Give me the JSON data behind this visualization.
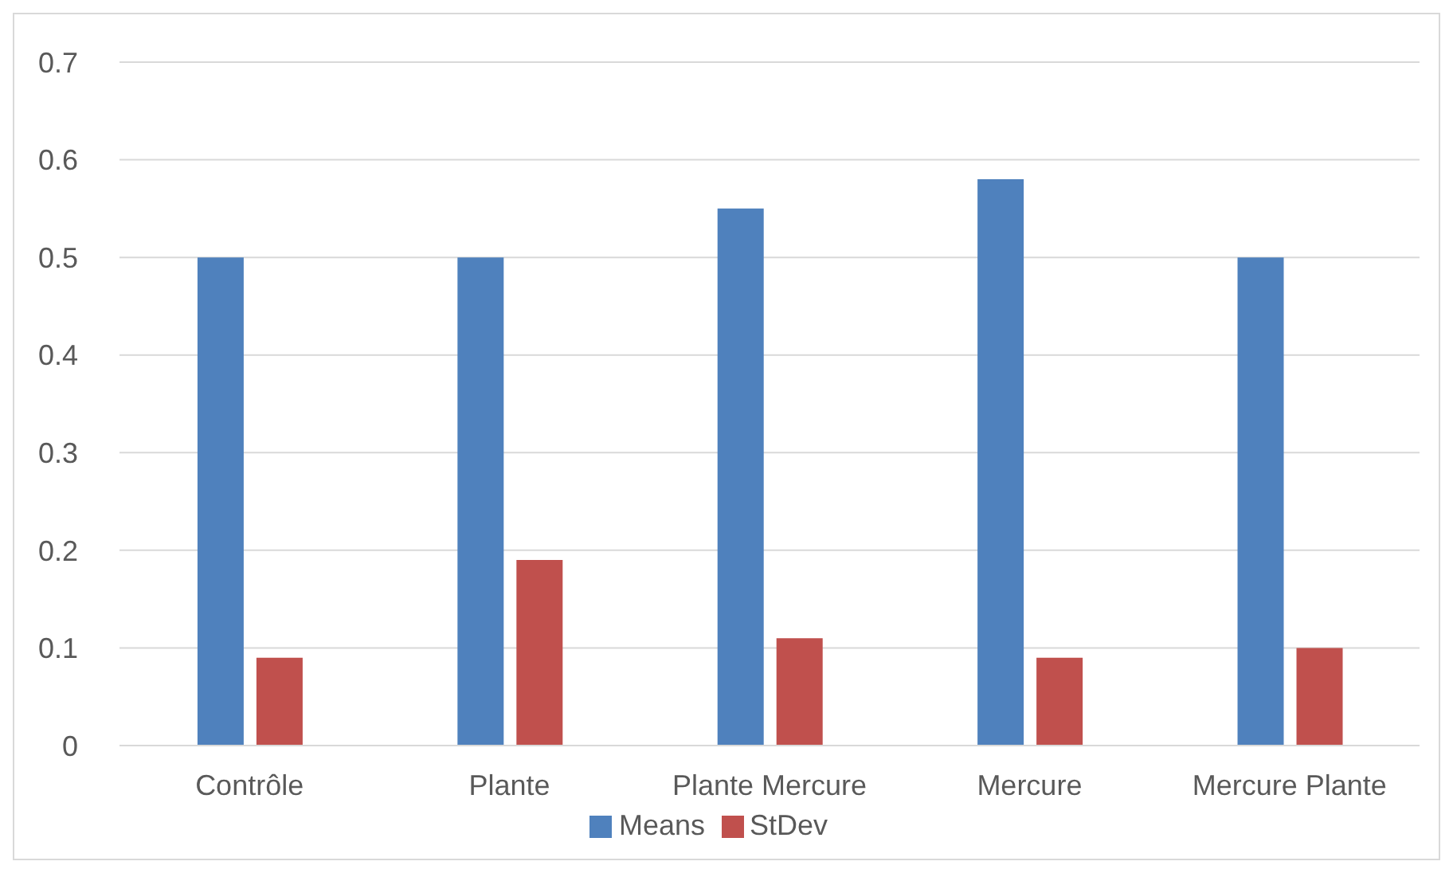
{
  "chart_data": {
    "type": "bar",
    "categories": [
      "Contrôle",
      "Plante",
      "Plante Mercure",
      "Mercure",
      "Mercure Plante"
    ],
    "series": [
      {
        "name": "Means",
        "color": "#4f81bd",
        "values": [
          0.5,
          0.5,
          0.55,
          0.58,
          0.5
        ]
      },
      {
        "name": "StDev",
        "color": "#c0504d",
        "values": [
          0.09,
          0.19,
          0.11,
          0.09,
          0.1
        ]
      }
    ],
    "ylim": [
      0,
      0.7
    ],
    "yticks": [
      0,
      0.1,
      0.2,
      0.3,
      0.4,
      0.5,
      0.6,
      0.7
    ],
    "grid": "y",
    "legend": "bottom"
  }
}
